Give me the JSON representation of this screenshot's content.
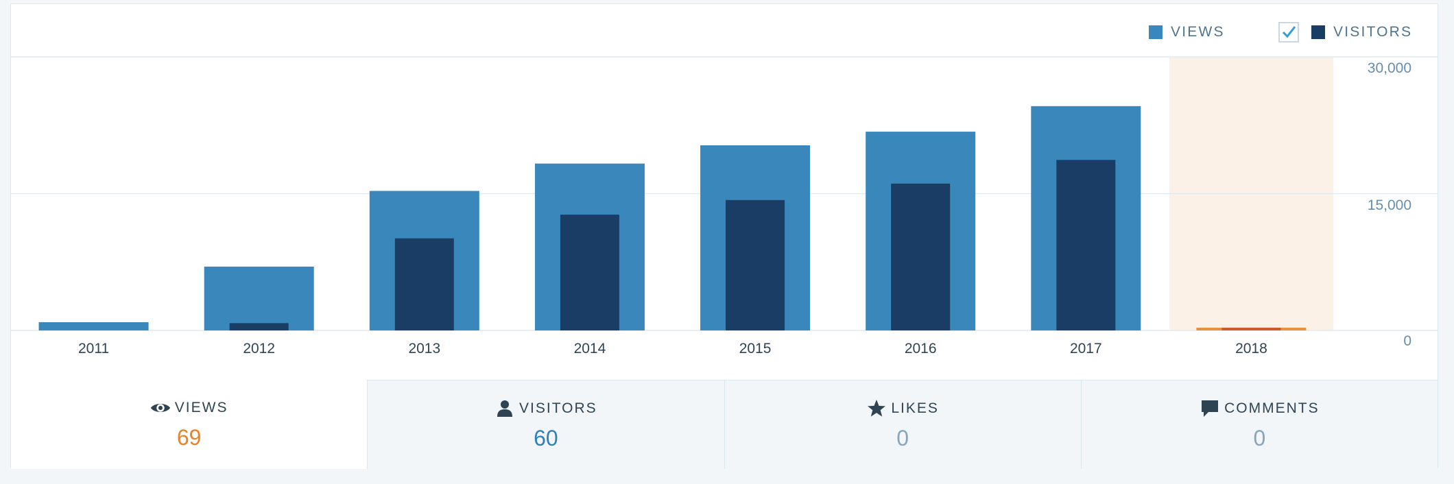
{
  "legend": {
    "views_label": "VIEWS",
    "visitors_label": "VISITORS",
    "visitors_checked": true
  },
  "colors": {
    "views": "#3a87bb",
    "visitors": "#193d64",
    "highlight_bg": "#fcf1e6",
    "highlight_bar": "#e6913e",
    "highlight_bar_inner": "#cf5a2c",
    "grid": "#e1eaf0",
    "checkmark": "#2f9ed8"
  },
  "chart_data": {
    "type": "bar",
    "categories": [
      "2011",
      "2012",
      "2013",
      "2014",
      "2015",
      "2016",
      "2017",
      "2018"
    ],
    "series": [
      {
        "name": "VIEWS",
        "values": [
          900,
          7000,
          15300,
          18300,
          20300,
          21800,
          24600,
          300
        ]
      },
      {
        "name": "VISITORS",
        "values": [
          0,
          800,
          10100,
          12700,
          14300,
          16100,
          18700,
          300
        ]
      }
    ],
    "y_ticks": [
      "0",
      "15,000",
      "30,000"
    ],
    "ylim": [
      0,
      30000
    ],
    "highlighted_category": "2018",
    "grid": true,
    "y_axis_position": "right",
    "legend_position": "top-right"
  },
  "stats": {
    "views": {
      "label": "VIEWS",
      "value": "69"
    },
    "visitors": {
      "label": "VISITORS",
      "value": "60"
    },
    "likes": {
      "label": "LIKES",
      "value": "0"
    },
    "comments": {
      "label": "COMMENTS",
      "value": "0"
    }
  }
}
